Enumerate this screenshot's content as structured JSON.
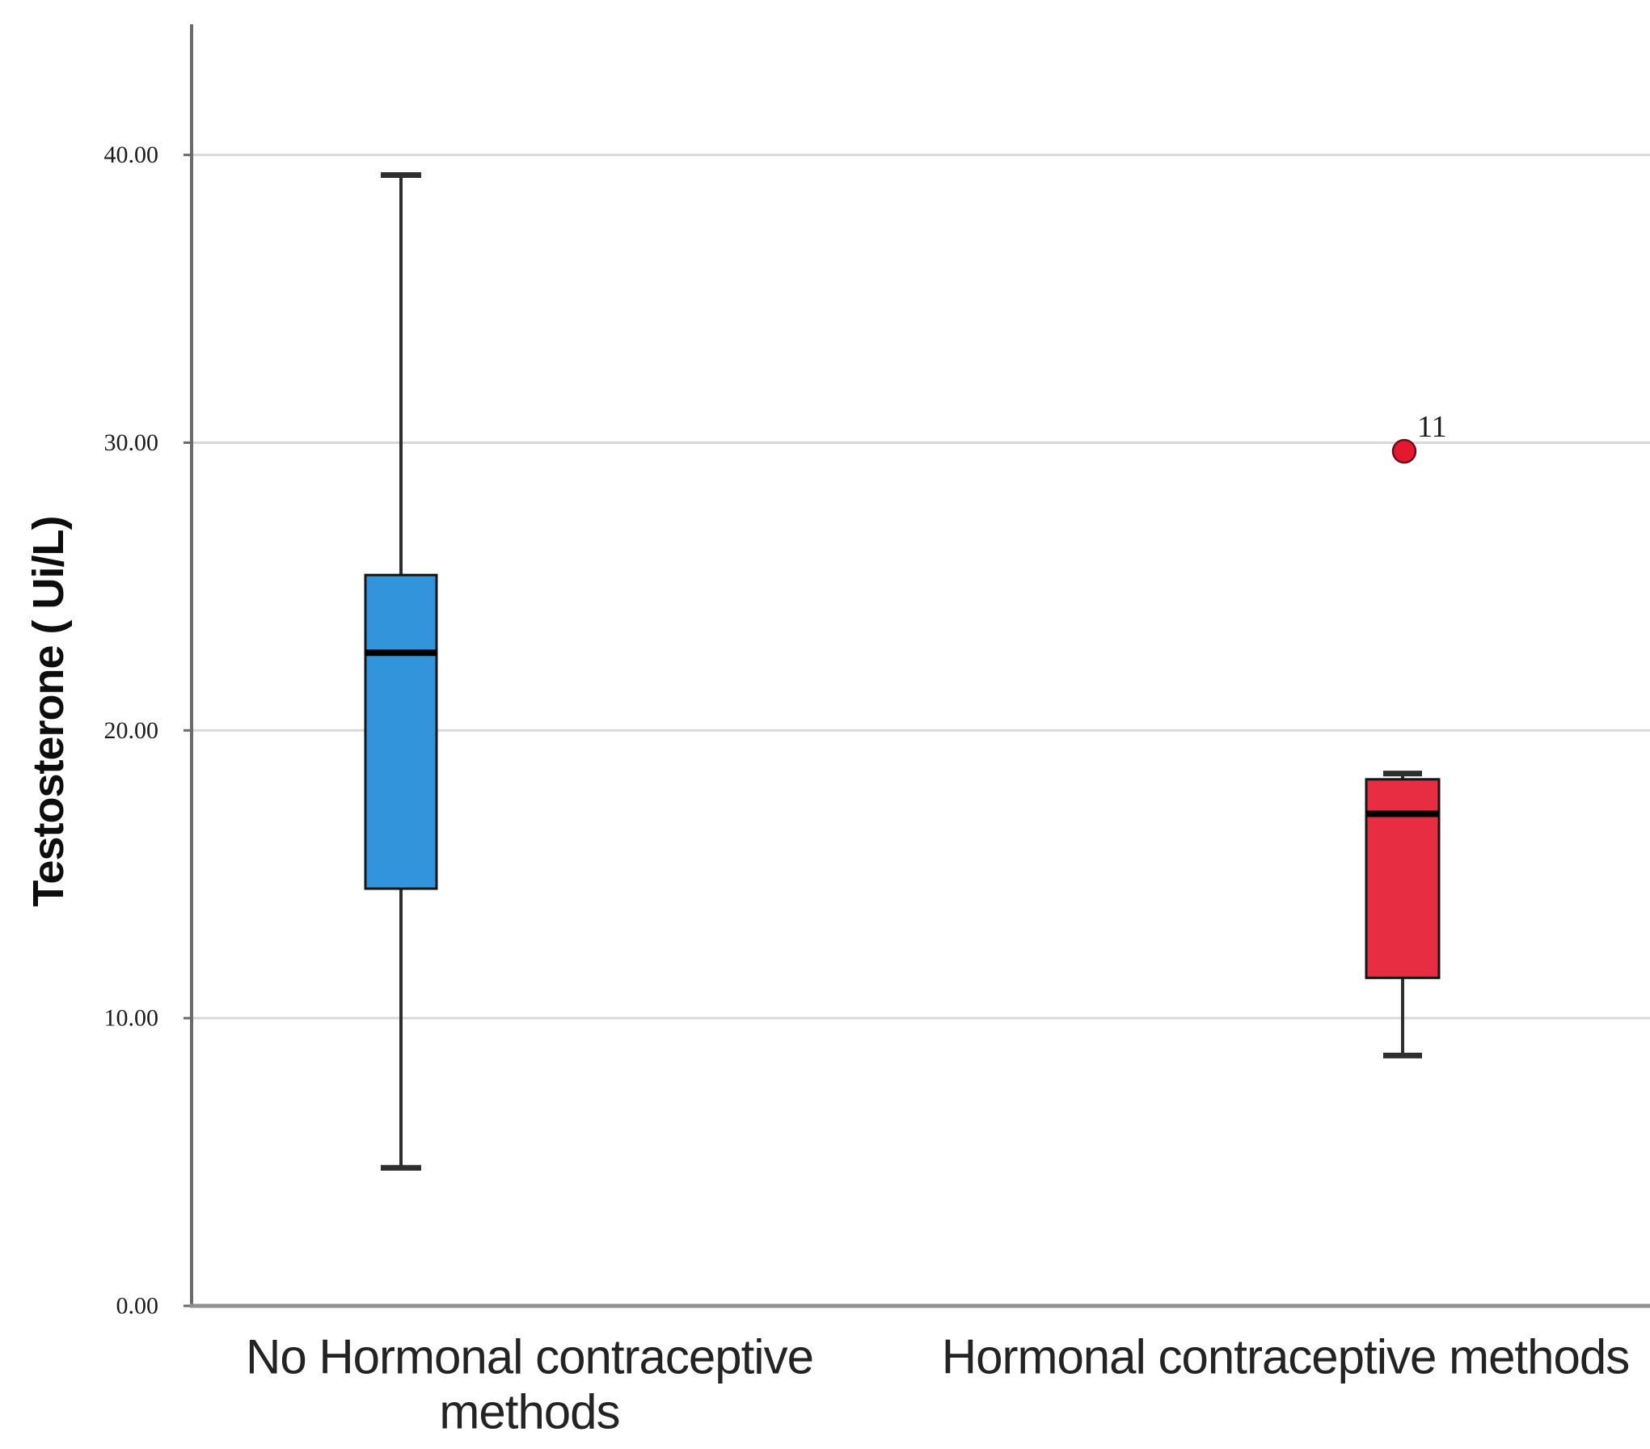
{
  "page": {
    "background": "#ffffff"
  },
  "y_axis": {
    "title": "Testosterone ( Ui/L)",
    "tick_labels": [
      "40.00",
      "30.00",
      "20.00",
      "10.00",
      "0.00"
    ],
    "tick_values": [
      40,
      30,
      20,
      10,
      0
    ]
  },
  "x_axis": {
    "category_lines": [
      [
        "No Hormonal contraceptive",
        "methods"
      ],
      [
        "Hormonal contraceptive methods"
      ]
    ]
  },
  "chart_data": {
    "type": "boxplot",
    "title": "",
    "xlabel": "",
    "ylabel": "Testosterone ( Ui/L)",
    "ylim": [
      0,
      44.5
    ],
    "yticks": [
      0,
      10,
      20,
      30,
      40
    ],
    "grid": true,
    "legend": false,
    "categories": [
      "No Hormonal contraceptive methods",
      "Hormonal contraceptive methods"
    ],
    "series": [
      {
        "name": "No Hormonal contraceptive methods",
        "box_color": "#3294da",
        "whisker_low": 4.8,
        "q1": 14.5,
        "median": 22.7,
        "q3": 25.4,
        "whisker_high": 39.3,
        "outliers": []
      },
      {
        "name": "Hormonal contraceptive methods",
        "box_color": "#e62d42",
        "whisker_low": 8.7,
        "q1": 11.4,
        "median": 17.1,
        "q3": 18.3,
        "whisker_high": 18.5,
        "outliers": [
          {
            "value": 29.7,
            "label": "11"
          }
        ]
      }
    ]
  },
  "colors": {
    "gridline": "#d9d9d9",
    "y_axis_line": "#6a6a6a",
    "x_axis_line": "#8f8f8f",
    "box_stroke": "#151515",
    "median": "#000000",
    "whisker": "#2e2e2e",
    "outlier_fill": "#e4182e",
    "outlier_stroke": "#6b0e1c",
    "text": "#1c1c1c"
  }
}
